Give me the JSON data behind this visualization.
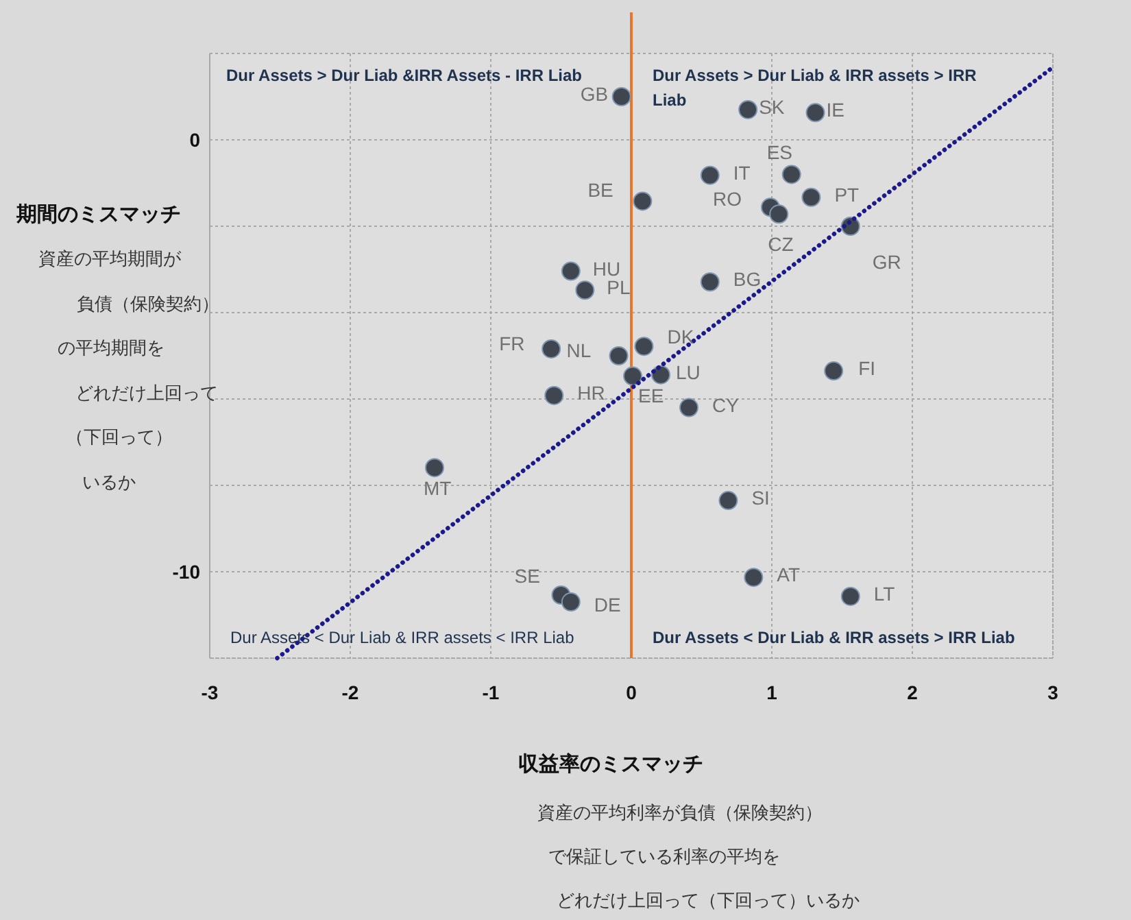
{
  "chart_data": {
    "type": "scatter",
    "xlabel": "収益率のミスマッチ",
    "ylabel": "期間のミスマッチ",
    "xlim": [
      -3,
      3
    ],
    "xticks": [
      -3,
      -2,
      -1,
      0,
      1,
      2,
      3
    ],
    "ylim": [
      -12,
      2
    ],
    "yticks": [
      {
        "value": 2,
        "label": null
      },
      0,
      {
        "value": -2,
        "label": null
      },
      {
        "value": -4,
        "label": null
      },
      {
        "value": -6,
        "label": null
      },
      {
        "value": -8,
        "label": null
      },
      -10,
      {
        "value": -12,
        "label": null
      }
    ],
    "grid": true,
    "series": [
      {
        "type": "scatter",
        "marker": "circle",
        "color": "#3f4650",
        "x": [
          -0.07,
          0.83,
          1.31,
          1.14,
          0.56,
          1.28,
          0.99,
          1.05,
          0.08,
          1.56,
          -0.43,
          -0.33,
          0.56,
          -0.57,
          -0.09,
          0.09,
          0.01,
          0.21,
          1.44,
          -0.55,
          0.41,
          -1.4,
          0.69,
          0.87,
          -0.5,
          -0.43,
          1.56
        ],
        "values": [
          1.0,
          0.7,
          0.63,
          -0.8,
          -0.82,
          -1.33,
          -1.56,
          -1.72,
          -1.42,
          -2.0,
          -3.04,
          -3.48,
          -3.29,
          -4.84,
          -5.0,
          -4.78,
          -5.47,
          -5.44,
          -5.35,
          -5.92,
          -6.2,
          -7.59,
          -8.35,
          -10.13,
          -10.54,
          -10.7,
          -10.57
        ]
      },
      {
        "type": "line",
        "line_style": "dotted",
        "color": "#1c1a8a",
        "x": [
          -2.52,
          3
        ],
        "values": [
          -12,
          1.68
        ]
      }
    ],
    "ref_lines": [
      {
        "axis": "x",
        "value": 0,
        "color": "#e8762c"
      }
    ],
    "annotations": [
      "Dur Assets > Dur Liab &IRR Assets - IRR Liab",
      "Dur Assets > Dur Liab & IRR assets > IRR Liab",
      "Dur Assets < Dur Liab & IRR assets < IRR Liab",
      "Dur Assets < Dur Liab & IRR assets > IRR Liab",
      "資産の平均期間が",
      "負債（保険契約）",
      "の平均期間を",
      "どれだけ上回って",
      "（下回って）",
      "いるか",
      "資産の平均利率が負債（保険契約）",
      "で保証している利率の平均を",
      "どれだけ上回って（下回って）いるか",
      {
        "text": "GB",
        "x": -0.07,
        "y": 1.0
      },
      {
        "text": "SK",
        "x": 0.83,
        "y": 0.7
      },
      {
        "text": "IE",
        "x": 1.31,
        "y": 0.63
      },
      {
        "text": "ES",
        "x": 1.14,
        "y": -0.8
      },
      {
        "text": "IT",
        "x": 0.56,
        "y": -0.82
      },
      {
        "text": "PT",
        "x": 1.28,
        "y": -1.33
      },
      {
        "text": "RO",
        "x": 0.99,
        "y": -1.56
      },
      {
        "text": "CZ",
        "x": 1.05,
        "y": -1.72
      },
      {
        "text": "BE",
        "x": 0.08,
        "y": -1.42
      },
      {
        "text": "GR",
        "x": 1.56,
        "y": -2.0
      },
      {
        "text": "HU",
        "x": -0.43,
        "y": -3.04
      },
      {
        "text": "PL",
        "x": -0.33,
        "y": -3.48
      },
      {
        "text": "BG",
        "x": 0.56,
        "y": -3.29
      },
      {
        "text": "FR",
        "x": -0.57,
        "y": -4.84
      },
      {
        "text": "NL",
        "x": -0.09,
        "y": -5.0
      },
      {
        "text": "DK",
        "x": 0.09,
        "y": -4.78
      },
      {
        "text": "EE",
        "x": 0.01,
        "y": -5.47
      },
      {
        "text": "LU",
        "x": 0.21,
        "y": -5.44
      },
      {
        "text": "FI",
        "x": 1.44,
        "y": -5.35
      },
      {
        "text": "HR",
        "x": -0.55,
        "y": -5.92
      },
      {
        "text": "CY",
        "x": 0.41,
        "y": -6.2
      },
      {
        "text": "MT",
        "x": -1.4,
        "y": -7.59
      },
      {
        "text": "SI",
        "x": 0.69,
        "y": -8.35
      },
      {
        "text": "AT",
        "x": 0.87,
        "y": -10.13
      },
      {
        "text": "SE",
        "x": -0.5,
        "y": -10.54
      },
      {
        "text": "DE",
        "x": -0.43,
        "y": -10.7
      },
      {
        "text": "LT",
        "x": 1.56,
        "y": -10.57
      }
    ]
  }
}
